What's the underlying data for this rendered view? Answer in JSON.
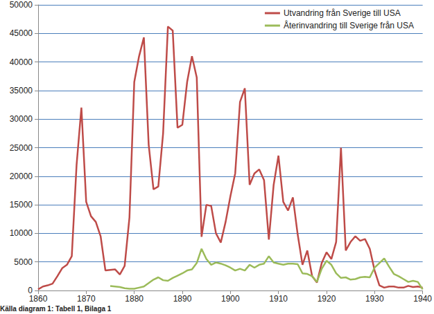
{
  "chart_data": {
    "type": "line",
    "annotation": "Källa diagram 1: Tabell 1, Bilaga 1",
    "x": [
      1860,
      1861,
      1862,
      1863,
      1864,
      1865,
      1866,
      1867,
      1868,
      1869,
      1870,
      1871,
      1872,
      1873,
      1874,
      1875,
      1876,
      1877,
      1878,
      1879,
      1880,
      1881,
      1882,
      1883,
      1884,
      1885,
      1886,
      1887,
      1888,
      1889,
      1890,
      1891,
      1892,
      1893,
      1894,
      1895,
      1896,
      1897,
      1898,
      1899,
      1900,
      1901,
      1902,
      1903,
      1904,
      1905,
      1906,
      1907,
      1908,
      1909,
      1910,
      1911,
      1912,
      1913,
      1914,
      1915,
      1916,
      1917,
      1918,
      1919,
      1920,
      1921,
      1922,
      1923,
      1924,
      1925,
      1926,
      1927,
      1928,
      1929,
      1930,
      1931,
      1932,
      1933,
      1934,
      1935,
      1936,
      1937,
      1938,
      1939,
      1940
    ],
    "series": [
      {
        "name": "Utvandring från Sverige till USA",
        "color": "#be4b48",
        "values": [
          200,
          700,
          900,
          1200,
          2500,
          3900,
          4500,
          6000,
          22000,
          32000,
          15500,
          13000,
          12000,
          9500,
          3500,
          3600,
          3700,
          2800,
          4300,
          12800,
          36500,
          41000,
          44300,
          25500,
          17700,
          18200,
          27500,
          46200,
          45500,
          28500,
          29000,
          36500,
          41000,
          37300,
          9400,
          15000,
          14800,
          10000,
          8400,
          12000,
          16500,
          20500,
          33000,
          35400,
          18500,
          20500,
          21200,
          19300,
          8900,
          18500,
          23600,
          15500,
          14000,
          16300,
          9800,
          4500,
          7000,
          2500,
          1400,
          4800,
          6700,
          5500,
          8500,
          25000,
          7000,
          8500,
          9500,
          8700,
          9000,
          7300,
          3500,
          900,
          500,
          700,
          700,
          500,
          500,
          800,
          600,
          700,
          500
        ]
      },
      {
        "name": "Återinvandring till Sverige från USA",
        "color": "#9bbb59",
        "values": [
          null,
          null,
          null,
          null,
          null,
          null,
          null,
          null,
          null,
          null,
          null,
          null,
          null,
          null,
          null,
          800,
          700,
          600,
          400,
          300,
          300,
          500,
          700,
          1300,
          1900,
          2300,
          1800,
          1700,
          2200,
          2600,
          3000,
          3500,
          3700,
          4800,
          7300,
          5500,
          4500,
          4900,
          4700,
          4400,
          4000,
          3500,
          3800,
          3500,
          4500,
          4000,
          4500,
          4700,
          6000,
          4900,
          4700,
          4500,
          4700,
          4700,
          4600,
          3000,
          2900,
          2500,
          1500,
          3800,
          5200,
          4500,
          3000,
          2200,
          2300,
          1900,
          2000,
          2300,
          2400,
          2300,
          4000,
          4800,
          5600,
          4200,
          2900,
          2500,
          2000,
          1500,
          1700,
          1500,
          200
        ]
      }
    ],
    "xlim": [
      1860,
      1940
    ],
    "xticks": [
      1860,
      1870,
      1880,
      1890,
      1900,
      1910,
      1920,
      1930,
      1940
    ],
    "ylim": [
      0,
      50000
    ],
    "yticks": [
      0,
      5000,
      10000,
      15000,
      20000,
      25000,
      30000,
      35000,
      40000,
      45000,
      50000
    ],
    "grid": true,
    "legend": "upper right"
  }
}
